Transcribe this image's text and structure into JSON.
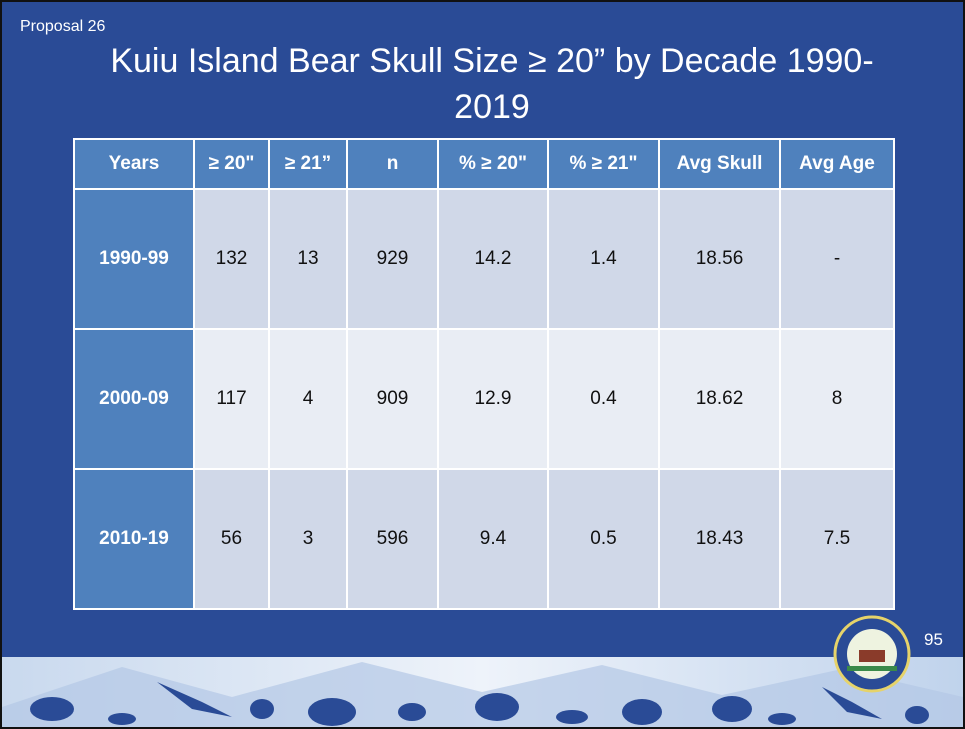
{
  "header": {
    "proposal": "Proposal 26",
    "title": "Kuiu Island Bear Skull Size ≥ 20” by Decade 1990-2019"
  },
  "table": {
    "columns": [
      "Years",
      "≥ 20\"",
      "≥ 21”",
      "n",
      "% ≥ 20\"",
      "% ≥ 21\"",
      "Avg Skull",
      "Avg Age"
    ],
    "rows": [
      [
        "1990-99",
        "132",
        "13",
        "929",
        "14.2",
        "1.4",
        "18.56",
        "-"
      ],
      [
        "2000-09",
        "117",
        "4",
        "909",
        "12.9",
        "0.4",
        "18.62",
        "8"
      ],
      [
        "2010-19",
        "56",
        "3",
        "596",
        "9.4",
        "0.5",
        "18.43",
        "7.5"
      ]
    ]
  },
  "footer": {
    "page_number": "95"
  }
}
